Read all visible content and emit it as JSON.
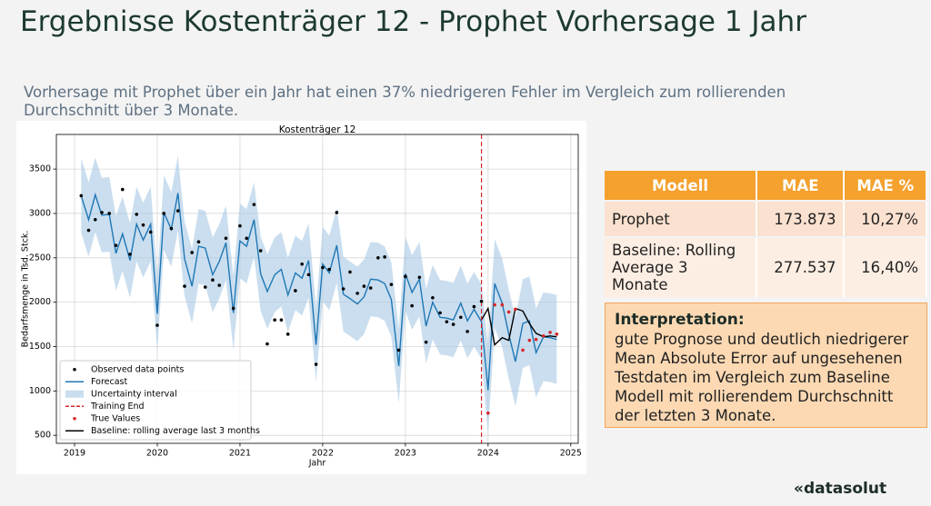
{
  "slide": {
    "title": "Ergebnisse Kostenträger 12 - Prophet Vorhersage 1 Jahr",
    "subtitle": [
      "Vorhersage mit Prophet über ein Jahr hat einen 37% niedrigeren Fehler im Vergleich zum rollierenden",
      "Durchschnitt über 3 Monate."
    ],
    "logo": "«datasolut"
  },
  "table": {
    "header": [
      "Modell",
      "MAE",
      "MAE %"
    ],
    "rows": [
      [
        "Prophet",
        "173.873",
        "10,27%"
      ],
      [
        "Baseline: Rolling Average 3 Monate",
        "277.537",
        "16,40%"
      ]
    ]
  },
  "interpretation": {
    "heading": "Interpretation:",
    "text": "gute Prognose und deutlich niedrigerer Mean Absolute Error auf ungesehenen Testdaten im Vergleich zum Baseline Modell mit rollierendem Durchschnitt der letzten 3 Monate."
  },
  "chart_data": {
    "type": "line",
    "title": "Kostenträger 12",
    "x_label": "Jahr",
    "y_label": "Bedarfsmenge in Tsd. Stck.",
    "xlim": [
      2018.78,
      2025.09
    ],
    "ylim": [
      410,
      3890
    ],
    "xticks": [
      2019,
      2020,
      2021,
      2022,
      2023,
      2024,
      2025
    ],
    "yticks": [
      500,
      1000,
      1500,
      2000,
      2500,
      3000,
      3500
    ],
    "grid": true,
    "legend": "lower left",
    "x": [
      2019.08,
      2019.17,
      2019.25,
      2019.33,
      2019.42,
      2019.5,
      2019.58,
      2019.67,
      2019.75,
      2019.83,
      2019.92,
      2020.0,
      2020.08,
      2020.17,
      2020.25,
      2020.33,
      2020.42,
      2020.5,
      2020.58,
      2020.67,
      2020.75,
      2020.83,
      2020.92,
      2021.0,
      2021.08,
      2021.17,
      2021.25,
      2021.33,
      2021.42,
      2021.5,
      2021.58,
      2021.67,
      2021.75,
      2021.83,
      2021.92,
      2022.0,
      2022.08,
      2022.17,
      2022.25,
      2022.33,
      2022.42,
      2022.5,
      2022.58,
      2022.67,
      2022.75,
      2022.83,
      2022.92,
      2023.0,
      2023.08,
      2023.17,
      2023.25,
      2023.33,
      2023.42,
      2023.5,
      2023.58,
      2023.67,
      2023.75,
      2023.83,
      2023.92,
      2024.0,
      2024.08,
      2024.17,
      2024.25,
      2024.33,
      2024.42,
      2024.5,
      2024.58,
      2024.67,
      2024.75,
      2024.83
    ],
    "series": [
      {
        "name": "Observed data points",
        "kind": "scatter",
        "color": "#000000",
        "values": [
          3200,
          2810,
          2930,
          3010,
          3000,
          2640,
          3270,
          2540,
          2990,
          2870,
          2790,
          1740,
          3000,
          2830,
          3030,
          2180,
          2560,
          2680,
          2170,
          2250,
          2190,
          2720,
          1930,
          2860,
          2720,
          3100,
          2580,
          1530,
          1800,
          1800,
          1640,
          2130,
          2430,
          2310,
          1300,
          2390,
          2370,
          3010,
          2150,
          2340,
          2100,
          2180,
          2160,
          2500,
          2510,
          2200,
          1460,
          2290,
          1960,
          2280,
          1550,
          2050,
          1880,
          1780,
          1750,
          1830,
          1670,
          1950,
          2010,
          null,
          null,
          null,
          null,
          null,
          null,
          null,
          null,
          null,
          null,
          null
        ]
      },
      {
        "name": "Forecast",
        "kind": "line",
        "color": "#1f77b4",
        "values": [
          3200,
          2930,
          3210,
          2980,
          2990,
          2550,
          2770,
          2470,
          2880,
          2700,
          2880,
          1870,
          3010,
          2820,
          3230,
          2490,
          2180,
          2630,
          2610,
          2310,
          2460,
          2670,
          1880,
          2690,
          2630,
          2930,
          2320,
          2120,
          2310,
          2370,
          2080,
          2330,
          2270,
          2470,
          1520,
          2430,
          2330,
          2640,
          2090,
          2040,
          1980,
          2060,
          2260,
          2250,
          2210,
          2030,
          1280,
          2320,
          2110,
          2260,
          1730,
          2000,
          1830,
          1820,
          1800,
          1990,
          1790,
          1920,
          1780,
          1010,
          2210,
          1990,
          1640,
          1330,
          1760,
          1790,
          1430,
          1610,
          1600,
          1580
        ]
      },
      {
        "name": "Uncertainty interval",
        "kind": "band",
        "color": "#a6c8e4",
        "lower": [
          2780,
          2510,
          2790,
          2560,
          2570,
          2130,
          2350,
          2050,
          2460,
          2280,
          2460,
          1450,
          2590,
          2400,
          2810,
          2070,
          1760,
          2210,
          2190,
          1890,
          2040,
          2250,
          1460,
          2270,
          2210,
          2510,
          1900,
          1700,
          1890,
          1950,
          1660,
          1910,
          1850,
          2050,
          1100,
          2010,
          1910,
          2220,
          1670,
          1620,
          1560,
          1640,
          1840,
          1830,
          1790,
          1610,
          860,
          1900,
          1690,
          1840,
          1310,
          1580,
          1410,
          1400,
          1380,
          1570,
          1370,
          1500,
          1360,
          510,
          1710,
          1490,
          1140,
          830,
          1260,
          1290,
          930,
          1110,
          1100,
          1080
        ],
        "upper": [
          3620,
          3350,
          3630,
          3400,
          3410,
          2970,
          3190,
          2890,
          3300,
          3120,
          3300,
          2290,
          3430,
          3240,
          3650,
          2910,
          2600,
          3050,
          3030,
          2730,
          2880,
          3090,
          2300,
          3110,
          3050,
          3350,
          2740,
          2540,
          2730,
          2790,
          2500,
          2750,
          2690,
          2890,
          1940,
          2850,
          2750,
          3060,
          2510,
          2460,
          2400,
          2480,
          2680,
          2670,
          2630,
          2450,
          1700,
          2740,
          2530,
          2680,
          2150,
          2420,
          2250,
          2240,
          2220,
          2410,
          2210,
          2340,
          2200,
          1510,
          2710,
          2490,
          2140,
          1830,
          2260,
          2290,
          1930,
          2110,
          2100,
          2080
        ]
      },
      {
        "name": "Training End",
        "kind": "vline",
        "color": "#d62728",
        "x": 2023.92
      },
      {
        "name": "True Values",
        "kind": "scatter",
        "color": "#d62728",
        "values": [
          null,
          null,
          null,
          null,
          null,
          null,
          null,
          null,
          null,
          null,
          null,
          null,
          null,
          null,
          null,
          null,
          null,
          null,
          null,
          null,
          null,
          null,
          null,
          null,
          null,
          null,
          null,
          null,
          null,
          null,
          null,
          null,
          null,
          null,
          null,
          null,
          null,
          null,
          null,
          null,
          null,
          null,
          null,
          null,
          null,
          null,
          null,
          null,
          null,
          null,
          null,
          null,
          null,
          null,
          null,
          null,
          null,
          null,
          null,
          750,
          1970,
          1970,
          1890,
          1920,
          1460,
          1570,
          1580,
          1620,
          1660,
          1640
        ]
      },
      {
        "name": "Baseline: rolling average last 3 months",
        "kind": "line",
        "color": "#000000",
        "values": [
          null,
          null,
          null,
          null,
          null,
          null,
          null,
          null,
          null,
          null,
          null,
          null,
          null,
          null,
          null,
          null,
          null,
          null,
          null,
          null,
          null,
          null,
          null,
          null,
          null,
          null,
          null,
          null,
          null,
          null,
          null,
          null,
          null,
          null,
          null,
          null,
          null,
          null,
          null,
          null,
          null,
          null,
          null,
          null,
          null,
          null,
          null,
          null,
          null,
          null,
          null,
          null,
          null,
          null,
          null,
          null,
          null,
          null,
          1800,
          1930,
          1520,
          1600,
          1570,
          1930,
          1900,
          1760,
          1650,
          1610,
          1620,
          1610
        ]
      }
    ]
  }
}
